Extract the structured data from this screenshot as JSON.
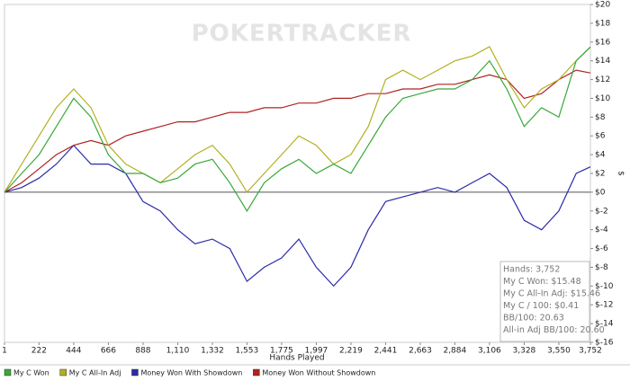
{
  "chart_data": {
    "type": "line",
    "watermark": "POKERTRACKER",
    "x_label": "Hands Played",
    "y_label": "$",
    "x": [
      1,
      111,
      222,
      333,
      444,
      555,
      666,
      777,
      888,
      999,
      1110,
      1221,
      1332,
      1443,
      1553,
      1664,
      1775,
      1886,
      1997,
      2108,
      2219,
      2330,
      2441,
      2552,
      2663,
      2774,
      2884,
      2995,
      3106,
      3217,
      3328,
      3439,
      3550,
      3661,
      3752
    ],
    "series": [
      {
        "name": "My C Won",
        "color": "#3aa83a",
        "values": [
          0,
          2,
          4,
          7,
          10,
          8,
          4,
          2,
          2,
          1,
          1.5,
          3,
          3.5,
          1,
          -2,
          1,
          2.5,
          3.5,
          2,
          3,
          2,
          5,
          8,
          10,
          10.5,
          11,
          11,
          12,
          14,
          11,
          7,
          9,
          8,
          14,
          15.48
        ]
      },
      {
        "name": "My C All-In Adj",
        "color": "#b3b020",
        "values": [
          0,
          3,
          6,
          9,
          11,
          9,
          5,
          3,
          2,
          1,
          2.5,
          4,
          5,
          3,
          0,
          2,
          4,
          6,
          5,
          3,
          4,
          7,
          12,
          13,
          12,
          13,
          14,
          14.5,
          15.5,
          12,
          9,
          11,
          12,
          14,
          15.46
        ]
      },
      {
        "name": "Money Won With Showdown",
        "color": "#2b2ba8",
        "values": [
          0,
          0.5,
          1.5,
          3,
          5,
          3,
          3,
          2,
          -1,
          -2,
          -4,
          -5.5,
          -5,
          -6,
          -9.5,
          -8,
          -7,
          -5,
          -8,
          -10,
          -8,
          -4,
          -1,
          -0.5,
          0,
          0.5,
          0,
          1,
          2,
          0.5,
          -3,
          -4,
          -2,
          2,
          2.7
        ]
      },
      {
        "name": "Money Won Without Showdown",
        "color": "#b02222",
        "values": [
          0,
          1,
          2.5,
          4,
          5,
          5.5,
          5,
          6,
          6.5,
          7,
          7.5,
          7.5,
          8,
          8.5,
          8.5,
          9,
          9,
          9.5,
          9.5,
          10,
          10,
          10.5,
          10.5,
          11,
          11,
          11.5,
          11.5,
          12,
          12.5,
          12,
          10,
          10.5,
          12,
          13,
          12.7
        ]
      }
    ],
    "xlim": [
      1,
      3752
    ],
    "xticks": [
      1,
      222,
      444,
      666,
      888,
      {
        "value": 1110,
        "label": "1,110"
      },
      {
        "value": 1332,
        "label": "1,332"
      },
      {
        "value": 1553,
        "label": "1,553"
      },
      {
        "value": 1775,
        "label": "1,775"
      },
      {
        "value": 1997,
        "label": "1,997"
      },
      {
        "value": 2219,
        "label": "2,219"
      },
      {
        "value": 2441,
        "label": "2,441"
      },
      {
        "value": 2663,
        "label": "2,663"
      },
      {
        "value": 2884,
        "label": "2,884"
      },
      {
        "value": 3106,
        "label": "3,106"
      },
      {
        "value": 3328,
        "label": "3,328"
      },
      {
        "value": 3550,
        "label": "3,550"
      },
      {
        "value": 3752,
        "label": "3,752"
      }
    ],
    "ylim": [
      -16,
      20
    ],
    "yticks": [
      {
        "value": -16,
        "label": "$-16"
      },
      {
        "value": -14,
        "label": "$-14"
      },
      {
        "value": -12,
        "label": "$-12"
      },
      {
        "value": -10,
        "label": "$-10"
      },
      {
        "value": -8,
        "label": "$-8"
      },
      {
        "value": -6,
        "label": "$-6"
      },
      {
        "value": -4,
        "label": "$-4"
      },
      {
        "value": -2,
        "label": "$-2"
      },
      {
        "value": 0,
        "label": "$0"
      },
      {
        "value": 2,
        "label": "$2"
      },
      {
        "value": 4,
        "label": "$4"
      },
      {
        "value": 6,
        "label": "$6"
      },
      {
        "value": 8,
        "label": "$8"
      },
      {
        "value": 10,
        "label": "$10"
      },
      {
        "value": 12,
        "label": "$12"
      },
      {
        "value": 14,
        "label": "$14"
      },
      {
        "value": 16,
        "label": "$16"
      },
      {
        "value": 18,
        "label": "$18"
      },
      {
        "value": 20,
        "label": "$20"
      }
    ],
    "y_axis_side": "right",
    "stats": [
      "Hands: 3,752",
      "My C Won: $15.48",
      "My C All-In Adj: $15.46",
      "My C / 100: $0.41",
      "BB/100: 20.63",
      "All-in Adj BB/100: 20.60"
    ]
  }
}
